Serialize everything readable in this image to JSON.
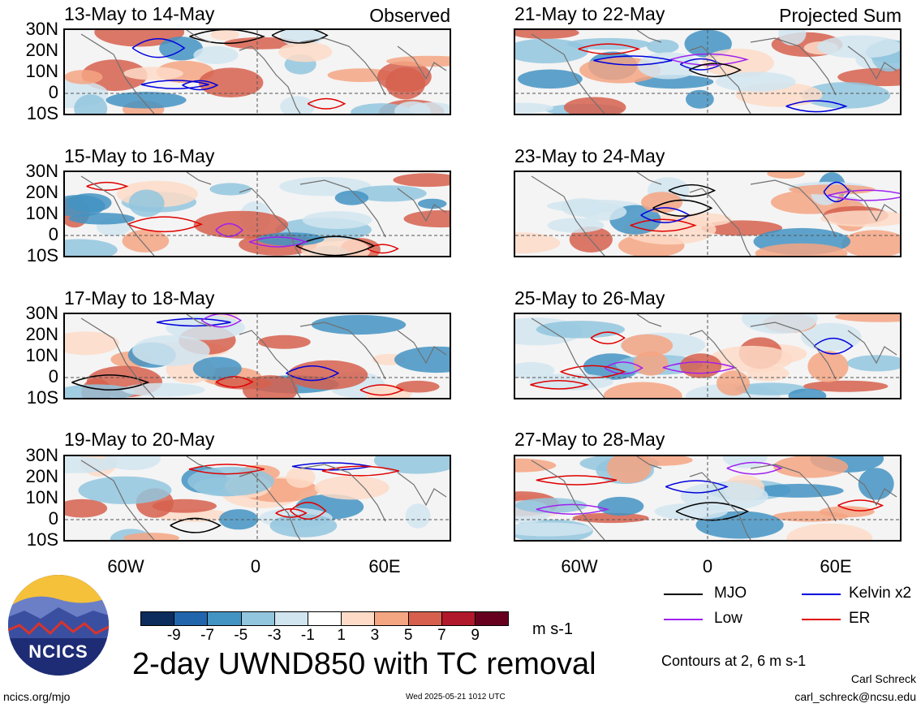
{
  "panels": {
    "left": [
      {
        "title": "13-May to 14-May",
        "tag": "Observed"
      },
      {
        "title": "15-May to 16-May",
        "tag": ""
      },
      {
        "title": "17-May to 18-May",
        "tag": ""
      },
      {
        "title": "19-May to 20-May",
        "tag": ""
      }
    ],
    "right": [
      {
        "title": "21-May to 22-May",
        "tag": "Projected Sum"
      },
      {
        "title": "23-May to 24-May",
        "tag": ""
      },
      {
        "title": "25-May to 26-May",
        "tag": ""
      },
      {
        "title": "27-May to 28-May",
        "tag": ""
      }
    ]
  },
  "axes": {
    "lat_labels": [
      "30N",
      "20N",
      "10N",
      "0",
      "10S"
    ],
    "lon_labels": [
      "60W",
      "0",
      "60E"
    ]
  },
  "colorbar": {
    "colors": [
      "#0b2c5c",
      "#2166ac",
      "#4393c3",
      "#92c5de",
      "#d1e5f0",
      "#ffffff",
      "#fddbc7",
      "#f4a582",
      "#d6604d",
      "#b2182b",
      "#67001f"
    ],
    "ticks": [
      "-9",
      "-7",
      "-5",
      "-3",
      "-1",
      "1",
      "3",
      "5",
      "7",
      "9"
    ],
    "unit": "m s-1"
  },
  "legend": {
    "items": [
      {
        "label": "MJO",
        "color": "#000000"
      },
      {
        "label": "Kelvin x2",
        "color": "#0000dd"
      },
      {
        "label": "Low",
        "color": "#a020f0"
      },
      {
        "label": "ER",
        "color": "#e00000"
      }
    ],
    "contours_note": "Contours at 2, 6 m s-1"
  },
  "footer": {
    "main_title": "2-day UWND850 with TC removal",
    "website": "ncics.org/mjo",
    "timestamp": "Wed 2025-05-21 1012 UTC",
    "author": "Carl Schreck",
    "email": "carl_schreck@ncsu.edu"
  },
  "logo": {
    "text": "NCICS"
  }
}
